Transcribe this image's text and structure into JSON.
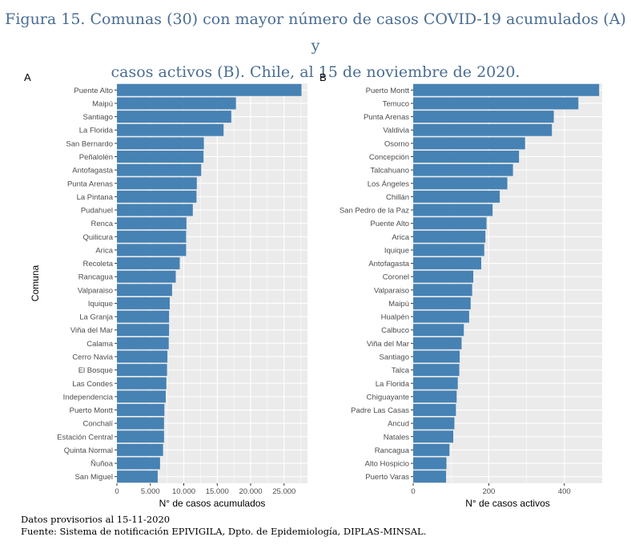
{
  "title": {
    "line1": "Figura 15. Comunas (30) con mayor número de casos COVID-19 acumulados (A) y",
    "line2": "casos activos (B). Chile, al 15 de noviembre de 2020."
  },
  "footer": {
    "line1": "Datos provisorios al 15-11-2020",
    "line2": "Fuente: Sistema de notificación EPIVIGILA, Dpto. de Epidemiología, DIPLAS-MINSAL."
  },
  "colors": {
    "bar": "#4682b4",
    "panel_bg": "#ebebeb",
    "grid": "#ffffff",
    "title": "#4a6d92"
  },
  "chart_data": [
    {
      "panel": "A",
      "type": "bar",
      "orientation": "horizontal",
      "ylabel": "Comuna",
      "xlabel": "N° de casos acumulados",
      "xlim": [
        0,
        28500
      ],
      "xticks": [
        0,
        5000,
        10000,
        15000,
        20000,
        25000
      ],
      "xtick_labels": [
        "0",
        "5.000",
        "10.000",
        "15.000",
        "20.000",
        "25.000"
      ],
      "categories": [
        "Puente Alto",
        "Maipú",
        "Santiago",
        "La Florida",
        "San Bernardo",
        "Peñalolén",
        "Antofagasta",
        "Punta Arenas",
        "La Pintana",
        "Pudahuel",
        "Renca",
        "Quilicura",
        "Arica",
        "Recoleta",
        "Rancagua",
        "Valparaiso",
        "Iquique",
        "La Granja",
        "Viña del Mar",
        "Calama",
        "Cerro Navia",
        "El Bosque",
        "Las Condes",
        "Independencia",
        "Puerto Montt",
        "Conchalí",
        "Estación Central",
        "Quinta Normal",
        "Ñuñoa",
        "San Miguel"
      ],
      "values": [
        27600,
        17800,
        17100,
        15950,
        13000,
        12950,
        12600,
        11950,
        11900,
        11350,
        10400,
        10350,
        10350,
        9400,
        8800,
        8250,
        7900,
        7800,
        7800,
        7750,
        7550,
        7500,
        7400,
        7300,
        7100,
        7050,
        7050,
        6900,
        6450,
        6100
      ]
    },
    {
      "panel": "B",
      "type": "bar",
      "orientation": "horizontal",
      "ylabel": "",
      "xlabel": "N° de casos activos",
      "xlim": [
        0,
        500
      ],
      "xticks": [
        0,
        200,
        400
      ],
      "xtick_labels": [
        "0",
        "200",
        "400"
      ],
      "categories": [
        "Puerto Montt",
        "Temuco",
        "Punta Arenas",
        "Valdivia",
        "Osorno",
        "Concepción",
        "Talcahuano",
        "Los Ángeles",
        "Chillán",
        "San Pedro de la Paz",
        "Puente Alto",
        "Arica",
        "Iquique",
        "Antofagasta",
        "Coronel",
        "Valparaiso",
        "Maipú",
        "Hualpén",
        "Calbuco",
        "Viña del Mar",
        "Santiago",
        "Talca",
        "La Florida",
        "Chiguayante",
        "Padre Las Casas",
        "Ancud",
        "Natales",
        "Rancagua",
        "Alto Hospicio",
        "Puerto Varas"
      ],
      "values": [
        492,
        437,
        372,
        367,
        296,
        280,
        264,
        249,
        229,
        210,
        194,
        191,
        188,
        180,
        159,
        156,
        152,
        148,
        134,
        128,
        123,
        122,
        118,
        115,
        113,
        109,
        106,
        96,
        88,
        87
      ]
    }
  ]
}
